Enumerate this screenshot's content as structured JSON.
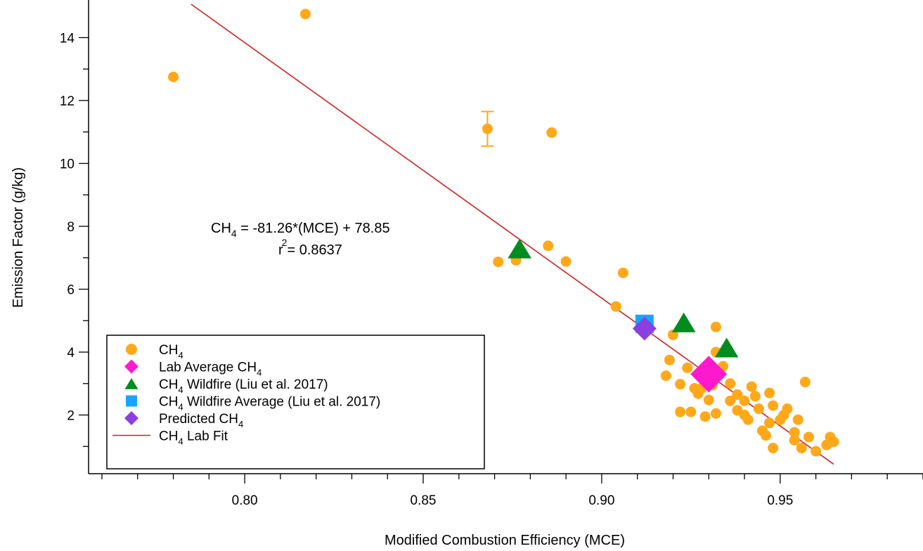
{
  "chart_data": {
    "type": "scatter",
    "title": "",
    "xlabel": "Modified Combustion Efficiency (MCE)",
    "ylabel": "Emission Factor (g/kg)",
    "xlim": [
      0.76,
      0.99
    ],
    "ylim": [
      0.3,
      15
    ],
    "x_ticks": [
      {
        "value": 0.8,
        "label": "0.80"
      },
      {
        "value": 0.85,
        "label": "0.85"
      },
      {
        "value": 0.9,
        "label": "0.90"
      },
      {
        "value": 0.95,
        "label": "0.95"
      }
    ],
    "x_minor_step": 0.01,
    "y_ticks": [
      {
        "value": 2,
        "label": "2"
      },
      {
        "value": 4,
        "label": "4"
      },
      {
        "value": 6,
        "label": "6"
      },
      {
        "value": 8,
        "label": "8"
      },
      {
        "value": 10,
        "label": "10"
      },
      {
        "value": 12,
        "label": "12"
      },
      {
        "value": 14,
        "label": "14"
      }
    ],
    "y_minor_step": 1,
    "grid": false,
    "legend_position": "bottom-left",
    "annotation": {
      "equation_prefix": "CH",
      "equation_subscript": "4",
      "equation_suffix": " = -81.26*(MCE) + 78.85",
      "r2_base": "r",
      "r2_superscript": "2",
      "r2_suffix": "= 0.8637"
    },
    "legend": [
      {
        "key": "ch4",
        "marker": "circle",
        "main": "CH",
        "sub": "4",
        "rest": ""
      },
      {
        "key": "lab_avg",
        "marker": "diamond",
        "main": "Lab Average CH",
        "sub": "4",
        "rest": ""
      },
      {
        "key": "wildfire",
        "marker": "triangle",
        "main": "CH",
        "sub": "4",
        "rest": " Wildfire (Liu et al. 2017)"
      },
      {
        "key": "wildfire_avg",
        "marker": "square",
        "main": "CH",
        "sub": "4",
        "rest": " Wildfire Average (Liu et al. 2017)"
      },
      {
        "key": "predicted",
        "marker": "diamond",
        "main": "Predicted CH",
        "sub": "4",
        "rest": ""
      },
      {
        "key": "fit",
        "marker": "line",
        "main": "CH",
        "sub": "4",
        "rest": " Lab Fit"
      }
    ],
    "series": {
      "ch4": {
        "color": "#FFA81A",
        "points": [
          [
            0.78,
            12.75
          ],
          [
            0.817,
            14.75
          ],
          [
            0.868,
            11.1
          ],
          [
            0.886,
            10.98
          ],
          [
            0.871,
            6.87
          ],
          [
            0.876,
            6.92
          ],
          [
            0.885,
            7.38
          ],
          [
            0.89,
            6.88
          ],
          [
            0.906,
            6.52
          ],
          [
            0.904,
            5.45
          ],
          [
            0.92,
            4.55
          ],
          [
            0.932,
            4.8
          ],
          [
            0.919,
            3.75
          ],
          [
            0.918,
            3.25
          ],
          [
            0.922,
            2.98
          ],
          [
            0.922,
            2.1
          ],
          [
            0.925,
            2.1
          ],
          [
            0.924,
            3.5
          ],
          [
            0.926,
            2.85
          ],
          [
            0.927,
            2.68
          ],
          [
            0.928,
            2.85
          ],
          [
            0.929,
            1.95
          ],
          [
            0.93,
            2.48
          ],
          [
            0.931,
            2.95
          ],
          [
            0.932,
            2.05
          ],
          [
            0.932,
            4.0
          ],
          [
            0.934,
            3.55
          ],
          [
            0.936,
            3.0
          ],
          [
            0.936,
            2.45
          ],
          [
            0.938,
            2.65
          ],
          [
            0.938,
            2.15
          ],
          [
            0.94,
            2.0
          ],
          [
            0.94,
            2.45
          ],
          [
            0.941,
            1.85
          ],
          [
            0.942,
            2.9
          ],
          [
            0.943,
            2.6
          ],
          [
            0.944,
            2.2
          ],
          [
            0.945,
            1.5
          ],
          [
            0.946,
            1.35
          ],
          [
            0.947,
            1.75
          ],
          [
            0.947,
            2.7
          ],
          [
            0.948,
            2.3
          ],
          [
            0.948,
            0.95
          ],
          [
            0.95,
            1.85
          ],
          [
            0.951,
            2.0
          ],
          [
            0.952,
            2.2
          ],
          [
            0.954,
            1.2
          ],
          [
            0.954,
            1.45
          ],
          [
            0.955,
            1.85
          ],
          [
            0.956,
            0.95
          ],
          [
            0.957,
            3.05
          ],
          [
            0.958,
            1.3
          ],
          [
            0.96,
            0.85
          ],
          [
            0.963,
            1.05
          ],
          [
            0.964,
            1.3
          ],
          [
            0.965,
            1.15
          ]
        ]
      },
      "error_bar": {
        "x": 0.868,
        "y": 11.1,
        "low": 10.55,
        "high": 11.65,
        "color": "#FFA81A"
      },
      "lab_avg": {
        "color": "#FF19CC",
        "points": [
          [
            0.93,
            3.3
          ]
        ]
      },
      "wildfire": {
        "color": "#008C1E",
        "points": [
          [
            0.877,
            7.25
          ],
          [
            0.923,
            4.9
          ],
          [
            0.935,
            4.1
          ]
        ]
      },
      "wildfire_avg": {
        "color": "#19A5FF",
        "points": [
          [
            0.912,
            4.9
          ]
        ]
      },
      "predicted": {
        "color": "#8C3FE0",
        "points": [
          [
            0.912,
            4.75
          ]
        ]
      },
      "fit": {
        "color": "#D42020",
        "slope": -81.26,
        "intercept": 78.85,
        "x_range": [
          0.785,
          0.965
        ]
      }
    }
  }
}
